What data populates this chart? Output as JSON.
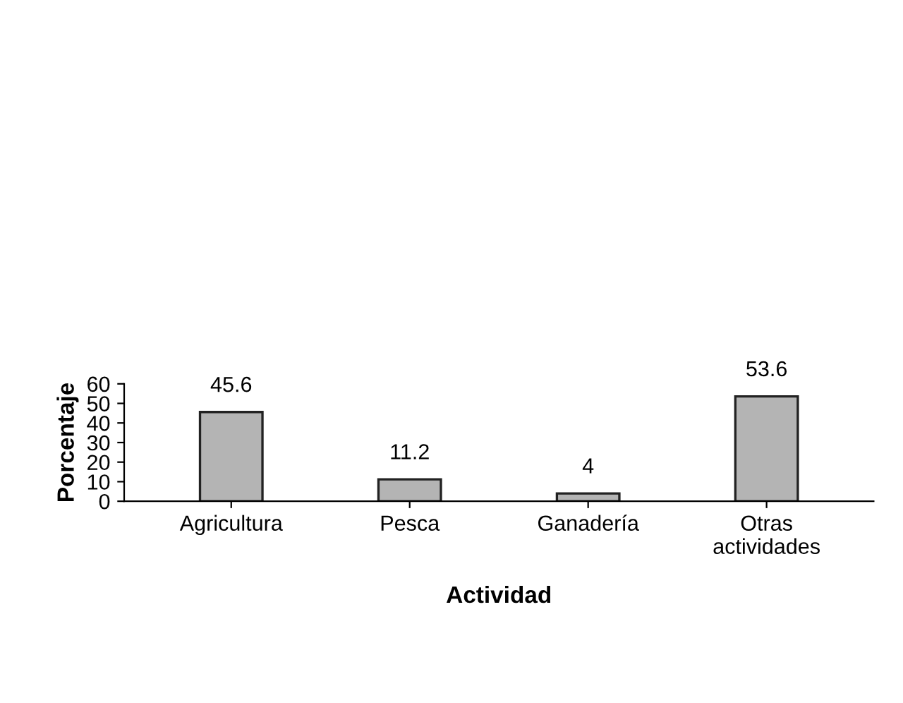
{
  "chart_data": {
    "type": "bar",
    "categories": [
      "Agricultura",
      "Pesca",
      "Ganadería",
      "Otras\nactividades"
    ],
    "values": [
      45.6,
      11.2,
      4,
      53.6
    ],
    "color": "#b4b4b4",
    "xlabel": "Actividad",
    "ylabel": "Porcentaje",
    "ylim": [
      0,
      60
    ],
    "yticks": [
      0,
      10,
      20,
      30,
      40,
      50,
      60
    ],
    "data_labels": true,
    "grid": false,
    "legend": false
  }
}
